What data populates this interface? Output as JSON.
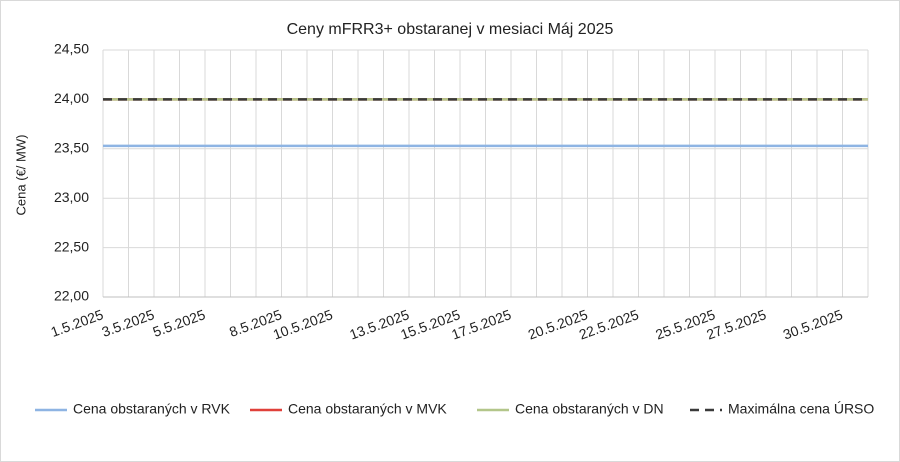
{
  "chart_data": {
    "type": "line",
    "title": "Ceny mFRR3+ obstaranej v mesiaci Máj 2025",
    "ylabel": "Cena (€/ MW)",
    "categories": [
      "1.5.2025",
      null,
      "3.5.2025",
      null,
      "5.5.2025",
      null,
      null,
      "8.5.2025",
      null,
      "10.5.2025",
      null,
      null,
      "13.5.2025",
      null,
      "15.5.2025",
      null,
      "17.5.2025",
      null,
      null,
      "20.5.2025",
      null,
      "22.5.2025",
      null,
      null,
      "25.5.2025",
      null,
      "27.5.2025",
      null,
      null,
      "30.5.2025",
      null
    ],
    "series": [
      {
        "name": "Cena obstaraných v RVK",
        "color": "#8eb4e3",
        "dash": false,
        "values": [
          23.53,
          23.53,
          23.53,
          23.53,
          23.53,
          23.53,
          23.53,
          23.53,
          23.53,
          23.53,
          23.53,
          23.53,
          23.53,
          23.53,
          23.53,
          23.53,
          23.53,
          23.53,
          23.53,
          23.53,
          23.53,
          23.53,
          23.53,
          23.53,
          23.53,
          23.53,
          23.53,
          23.53,
          23.53,
          23.53,
          23.53
        ]
      },
      {
        "name": "Cena obstaraných v MVK",
        "color": "#e0403a",
        "dash": false,
        "values": [
          24,
          24,
          24,
          24,
          24,
          24,
          24,
          24,
          24,
          24,
          24,
          24,
          24,
          24,
          24,
          24,
          24,
          24,
          24,
          24,
          24,
          24,
          24,
          24,
          24,
          24,
          24,
          24,
          24,
          24,
          24
        ]
      },
      {
        "name": "Cena obstaraných v DN",
        "color": "#b3c68a",
        "dash": false,
        "values": [
          24,
          24,
          24,
          24,
          24,
          24,
          24,
          24,
          24,
          24,
          24,
          24,
          24,
          24,
          24,
          24,
          24,
          24,
          24,
          24,
          24,
          24,
          24,
          24,
          24,
          24,
          24,
          24,
          24,
          24,
          24
        ]
      },
      {
        "name": "Maximálna cena ÚRSO",
        "color": "#3a3a3a",
        "dash": true,
        "values": [
          24,
          24,
          24,
          24,
          24,
          24,
          24,
          24,
          24,
          24,
          24,
          24,
          24,
          24,
          24,
          24,
          24,
          24,
          24,
          24,
          24,
          24,
          24,
          24,
          24,
          24,
          24,
          24,
          24,
          24,
          24
        ]
      }
    ],
    "ylim": [
      22,
      24.5
    ],
    "yticks": [
      {
        "value": 22,
        "label": "22,00"
      },
      {
        "value": 22.5,
        "label": "22,50"
      },
      {
        "value": 23,
        "label": "23,00"
      },
      {
        "value": 23.5,
        "label": "23,50"
      },
      {
        "value": 24,
        "label": "24,00"
      },
      {
        "value": 24.5,
        "label": "24,50"
      }
    ],
    "grid": true,
    "legend": "bottom"
  }
}
